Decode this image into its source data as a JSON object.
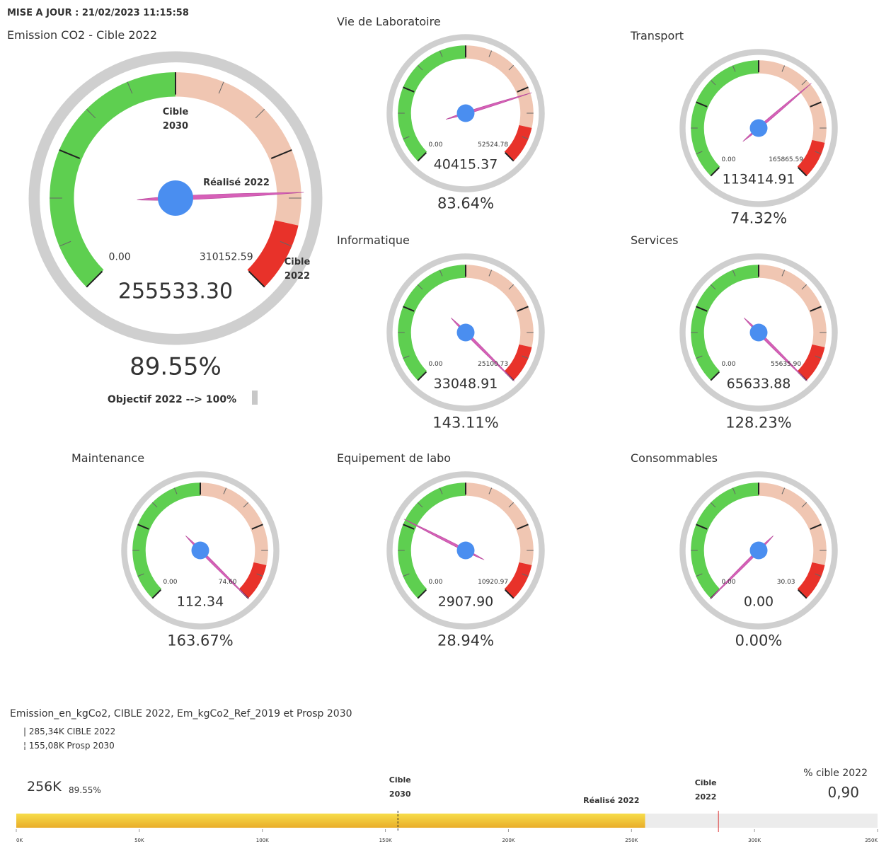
{
  "header": {
    "update": "MISE A JOUR : 21/02/2023 11:15:58"
  },
  "main_gauge": {
    "title": "Emission CO2 - Cible 2022",
    "min": {
      "value": 0,
      "label": "0.00"
    },
    "target": 310152.59,
    "value": {
      "value": 255533.3,
      "label": "255533.30"
    },
    "percent": "89.55%",
    "cible_2030": [
      "Cible",
      "2030"
    ],
    "realise": "Réalisé 2022",
    "cible_2022": [
      "Cible",
      "2022"
    ],
    "objective": "Objectif 2022 --> 100%"
  },
  "gauges": [
    {
      "title": "Vie de Laboratoire",
      "min": {
        "value": 0,
        "label": "0.00"
      },
      "target": 52524.78,
      "value": 40415.37,
      "percent": "83.64%"
    },
    {
      "title": "Transport",
      "min": {
        "value": 0,
        "label": "0.00"
      },
      "target": 165865.59,
      "value": 113414.91,
      "percent": "74.32%"
    },
    {
      "title": "Informatique",
      "min": {
        "value": 0,
        "label": "0.00"
      },
      "target": 25100.73,
      "value": 33048.91,
      "percent": "143.11%"
    },
    {
      "title": "Services",
      "min": {
        "value": 0,
        "label": "0.00"
      },
      "target": {
        "value": 55635.9,
        "label": "55635.90"
      },
      "value": 65633.88,
      "percent": "128.23%"
    },
    {
      "title": "Maintenance",
      "min": {
        "value": 0,
        "label": "0.00"
      },
      "target": {
        "value": 74.6,
        "label": "74.60"
      },
      "value": 112.34,
      "percent": "163.67%"
    },
    {
      "title": "Equipement de labo",
      "min": {
        "value": 0,
        "label": "0.00"
      },
      "target": 10920.97,
      "value": {
        "value": 2907.9,
        "label": "2907.90"
      },
      "percent": "28.94%"
    },
    {
      "title": "Consommables",
      "min": {
        "value": 0,
        "label": "0.00"
      },
      "target": 30.03,
      "value": {
        "value": 0,
        "label": "0.00"
      },
      "percent": "0.00%"
    }
  ],
  "bullet": {
    "title": "Emission_en_kgCo2, CIBLE 2022, Em_kgCo2_Ref_2019 et Prosp 2030",
    "legend": [
      "| 285,34K CIBLE 2022",
      "¦ 155,08K Prosp 2030"
    ],
    "value": {
      "value": 255533.3,
      "label": "256K"
    },
    "percent": "89.55%",
    "cible_2022": 285340,
    "prosp_2030": 155080,
    "kpi_title": "% cible 2022",
    "kpi": "0,90",
    "cible_2030_label": [
      "Cible",
      "2030"
    ],
    "realise_label": "Réalisé 2022",
    "cible_2022_label": [
      "Cible",
      "2022"
    ],
    "xlim": [
      0,
      350000
    ],
    "xticks": [
      {
        "value": 0,
        "label": "0K"
      },
      {
        "value": 50000,
        "label": "50K"
      },
      {
        "value": 100000,
        "label": "100K"
      },
      {
        "value": 150000,
        "label": "150K"
      },
      {
        "value": 200000,
        "label": "200K"
      },
      {
        "value": 250000,
        "label": "250K"
      },
      {
        "value": 300000,
        "label": "300K"
      },
      {
        "value": 350000,
        "label": "350K"
      }
    ]
  }
}
